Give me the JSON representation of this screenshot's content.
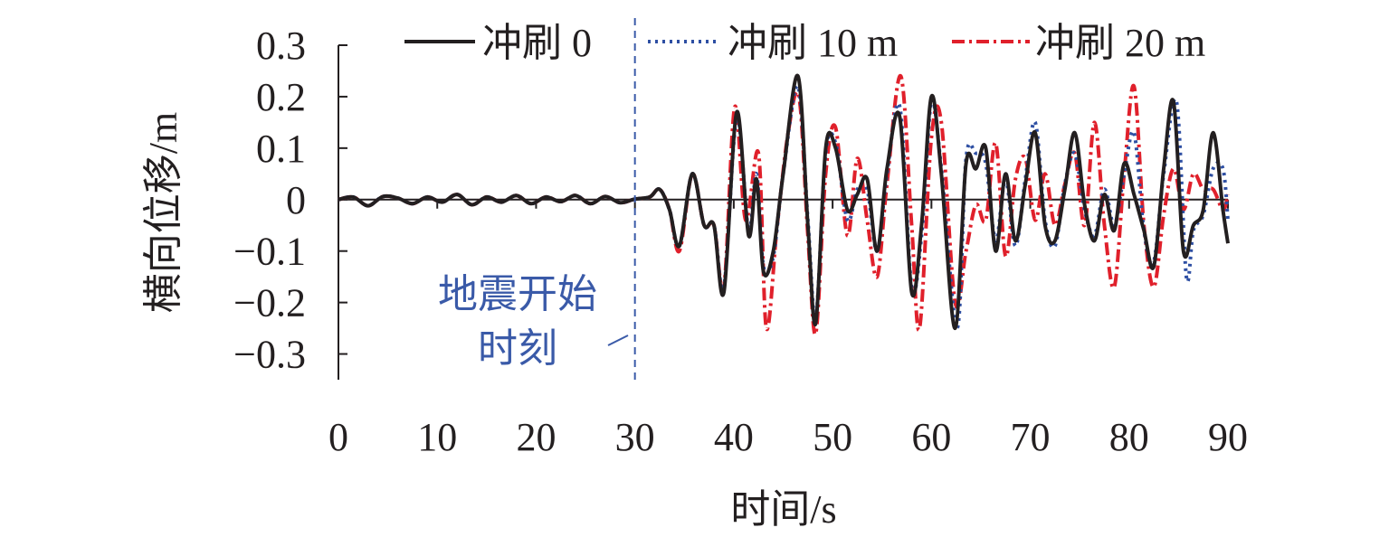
{
  "chart_data": {
    "type": "line",
    "xlabel": "时间/s",
    "ylabel": "横向位移/m",
    "xlim": [
      0,
      90
    ],
    "ylim": [
      -0.35,
      0.3
    ],
    "xticks": [
      0,
      10,
      20,
      30,
      40,
      50,
      60,
      70,
      80,
      90
    ],
    "yticks": [
      {
        "value": 0.3,
        "label": "0.3"
      },
      {
        "value": 0.2,
        "label": "0.2"
      },
      {
        "value": 0.1,
        "label": "0.1"
      },
      {
        "value": 0,
        "label": "0"
      },
      {
        "value": -0.1,
        "label": "−0.1"
      },
      {
        "value": -0.2,
        "label": "−0.2"
      },
      {
        "value": -0.3,
        "label": "−0.3"
      }
    ],
    "grid": false,
    "legend_position": "top",
    "annotation": {
      "text_line1": "地震开始",
      "text_line2": "时刻",
      "x": 30,
      "color": "#3a5aa8"
    },
    "series": [
      {
        "name": "冲刷 0",
        "color": "#231f20",
        "dash": "solid",
        "x": [
          0,
          1.5,
          3,
          4.5,
          6,
          7.5,
          9,
          10.5,
          12,
          13.5,
          15,
          16.5,
          18,
          19.5,
          21,
          22.5,
          24,
          25.5,
          27,
          28.5,
          30,
          31.5,
          32.5,
          33.5,
          34.5,
          35.8,
          37,
          38,
          39,
          40.3,
          41.5,
          42.3,
          43,
          44,
          45,
          46.5,
          47.5,
          48.3,
          49.3,
          50.3,
          51.5,
          52.5,
          53.5,
          54.5,
          55.5,
          56.8,
          58,
          59,
          60,
          61,
          62.4,
          63.5,
          64.5,
          65.5,
          66.5,
          67.5,
          68.5,
          69.5,
          70.5,
          71.5,
          72.5,
          73.5,
          74.5,
          75.5,
          76.5,
          77.5,
          78.5,
          79.5,
          80.5,
          81.5,
          82.5,
          83.5,
          84.5,
          85.5,
          86.5,
          87.5,
          88.5,
          89.5,
          90
        ],
        "values": [
          0,
          0.005,
          -0.012,
          0.006,
          0.003,
          -0.008,
          0.005,
          -0.005,
          0.01,
          -0.01,
          0.005,
          -0.005,
          0.008,
          -0.008,
          0.005,
          -0.004,
          0.008,
          -0.008,
          0.006,
          -0.006,
          0.001,
          0.005,
          0.02,
          -0.02,
          -0.09,
          0.05,
          -0.05,
          -0.05,
          -0.18,
          0.17,
          -0.07,
          0.04,
          -0.14,
          -0.1,
          0.05,
          0.24,
          -0.05,
          -0.24,
          0.1,
          0.1,
          -0.02,
          0.01,
          0.04,
          -0.1,
          0.06,
          0.16,
          -0.18,
          -0.05,
          0.2,
          0.05,
          -0.25,
          0.07,
          0.06,
          0.1,
          -0.1,
          0.05,
          -0.08,
          0.03,
          0.13,
          -0.05,
          -0.08,
          0.02,
          0.13,
          -0.01,
          -0.08,
          0.01,
          -0.06,
          0.07,
          0.01,
          -0.06,
          -0.13,
          0.06,
          0.19,
          -0.1,
          -0.05,
          -0.02,
          0.13,
          -0.02,
          -0.085
        ]
      },
      {
        "name": "冲刷 10 m",
        "color": "#2e4fa3",
        "dash": "dot",
        "x": [
          0,
          1.5,
          3,
          4.5,
          6,
          7.5,
          9,
          10.5,
          12,
          13.5,
          15,
          16.5,
          18,
          19.5,
          21,
          22.5,
          24,
          25.5,
          27,
          28.5,
          30,
          31.5,
          32.5,
          33.5,
          34.5,
          35.8,
          37,
          38,
          39,
          40.3,
          41.5,
          42.3,
          43,
          44,
          45,
          46.5,
          47.5,
          48.3,
          49.3,
          50.3,
          51.5,
          52.5,
          53.5,
          54.5,
          55.5,
          56.8,
          58,
          59,
          60,
          61,
          62.6,
          63.5,
          64.5,
          65.5,
          66.5,
          67.5,
          68.5,
          69.5,
          70.5,
          71.5,
          72.5,
          73.5,
          74.5,
          75.5,
          76.5,
          77.5,
          78.5,
          79.5,
          80.5,
          81.5,
          82.5,
          83.5,
          84.8,
          85.8,
          86.5,
          87.5,
          88.5,
          89.5,
          90
        ],
        "values": [
          0,
          0.005,
          -0.012,
          0.006,
          0.003,
          -0.008,
          0.005,
          -0.005,
          0.01,
          -0.01,
          0.005,
          -0.005,
          0.008,
          -0.008,
          0.005,
          -0.004,
          0.008,
          -0.008,
          0.006,
          -0.006,
          0.001,
          0.005,
          0.02,
          -0.02,
          -0.09,
          0.05,
          -0.05,
          -0.05,
          -0.17,
          0.16,
          -0.06,
          0.05,
          -0.13,
          -0.11,
          0.05,
          0.22,
          -0.04,
          -0.23,
          0.09,
          0.11,
          -0.04,
          0.02,
          0.02,
          -0.1,
          0.05,
          0.18,
          -0.17,
          -0.07,
          0.19,
          0.06,
          -0.25,
          0.08,
          0.09,
          0.07,
          -0.08,
          0.04,
          -0.09,
          0.04,
          0.15,
          -0.04,
          -0.09,
          0.03,
          0.09,
          -0.02,
          -0.07,
          0.02,
          -0.05,
          0.05,
          0.13,
          -0.06,
          -0.12,
          0.05,
          0.19,
          -0.15,
          -0.06,
          -0.03,
          0.06,
          0.06,
          -0.04
        ]
      },
      {
        "name": "冲刷 20 m",
        "color": "#e0202b",
        "dash": "dashdot",
        "x": [
          0,
          1.5,
          3,
          4.5,
          6,
          7.5,
          9,
          10.5,
          12,
          13.5,
          15,
          16.5,
          18,
          19.5,
          21,
          22.5,
          24,
          25.5,
          27,
          28.5,
          30,
          31.5,
          32.5,
          33.5,
          34.5,
          35.8,
          37,
          38,
          39,
          40.1,
          41.2,
          42.5,
          43.3,
          44.4,
          45.5,
          46.6,
          47.5,
          48.3,
          49.3,
          50.3,
          51.5,
          52.5,
          53.5,
          54.5,
          55.5,
          56.9,
          58,
          58.8,
          60,
          61,
          62.4,
          63.5,
          64.5,
          65.5,
          66.5,
          67.5,
          68.5,
          69.5,
          70.5,
          71.5,
          72.5,
          73.5,
          74.5,
          75.5,
          76.5,
          77.5,
          78.5,
          79.5,
          80.5,
          81.5,
          82.5,
          83.5,
          84.5,
          85.5,
          86.5,
          87.5,
          88.5,
          89.5,
          90
        ],
        "values": [
          0,
          0.005,
          -0.012,
          0.006,
          0.003,
          -0.008,
          0.005,
          -0.005,
          0.01,
          -0.01,
          0.005,
          -0.005,
          0.008,
          -0.008,
          0.005,
          -0.004,
          0.008,
          -0.008,
          0.006,
          -0.006,
          0.001,
          0.005,
          0.02,
          -0.02,
          -0.1,
          0.05,
          -0.05,
          -0.05,
          -0.17,
          0.18,
          -0.04,
          0.09,
          -0.25,
          -0.05,
          0.13,
          0.2,
          -0.07,
          -0.26,
          0.05,
          0.14,
          -0.07,
          0.08,
          -0.04,
          -0.15,
          0.03,
          0.24,
          -0.05,
          -0.25,
          0.12,
          0.15,
          -0.2,
          -0.1,
          -0.01,
          -0.04,
          0.11,
          -0.11,
          0.04,
          0.08,
          -0.04,
          0.05,
          -0.05,
          0.03,
          0.09,
          -0.05,
          0.15,
          -0.05,
          -0.17,
          0.05,
          0.22,
          -0.05,
          -0.17,
          -0.03,
          0.06,
          -0.02,
          0.05,
          0.02,
          0.02,
          -0.02,
          0.01
        ]
      }
    ]
  }
}
